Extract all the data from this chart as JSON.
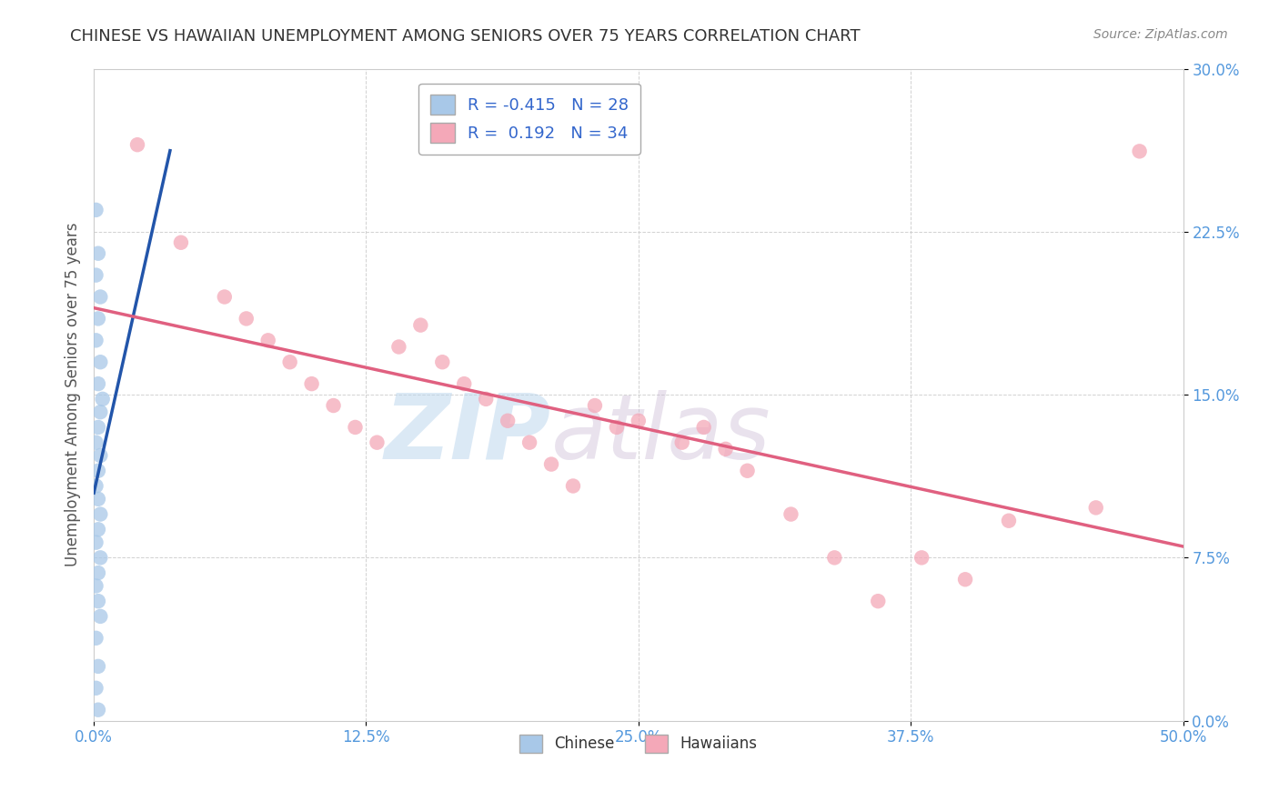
{
  "title": "CHINESE VS HAWAIIAN UNEMPLOYMENT AMONG SENIORS OVER 75 YEARS CORRELATION CHART",
  "source": "Source: ZipAtlas.com",
  "ylabel": "Unemployment Among Seniors over 75 years",
  "xlim": [
    0.0,
    0.5
  ],
  "ylim": [
    0.0,
    0.3
  ],
  "xticks": [
    0.0,
    0.125,
    0.25,
    0.375,
    0.5
  ],
  "xtick_labels": [
    "0.0%",
    "12.5%",
    "25.0%",
    "37.5%",
    "50.0%"
  ],
  "yticks": [
    0.0,
    0.075,
    0.15,
    0.225,
    0.3
  ],
  "ytick_labels": [
    "0.0%",
    "7.5%",
    "15.0%",
    "22.5%",
    "30.0%"
  ],
  "chinese_R": -0.415,
  "chinese_N": 28,
  "hawaiian_R": 0.192,
  "hawaiian_N": 34,
  "chinese_color": "#a8c8e8",
  "hawaiian_color": "#f4a8b8",
  "chinese_line_color": "#2255aa",
  "hawaiian_line_color": "#e06080",
  "bg_color": "#ffffff",
  "grid_color": "#cccccc",
  "watermark_zip": "ZIP",
  "watermark_atlas": "atlas",
  "chinese_x": [
    0.001,
    0.002,
    0.001,
    0.003,
    0.002,
    0.001,
    0.003,
    0.002,
    0.004,
    0.003,
    0.002,
    0.001,
    0.003,
    0.002,
    0.001,
    0.002,
    0.003,
    0.002,
    0.001,
    0.003,
    0.002,
    0.001,
    0.002,
    0.003,
    0.001,
    0.002,
    0.001,
    0.002
  ],
  "chinese_y": [
    0.235,
    0.215,
    0.205,
    0.195,
    0.185,
    0.175,
    0.165,
    0.155,
    0.148,
    0.142,
    0.135,
    0.128,
    0.122,
    0.115,
    0.108,
    0.102,
    0.095,
    0.088,
    0.082,
    0.075,
    0.068,
    0.062,
    0.055,
    0.048,
    0.038,
    0.025,
    0.015,
    0.005
  ],
  "hawaiian_x": [
    0.02,
    0.04,
    0.06,
    0.07,
    0.08,
    0.09,
    0.1,
    0.11,
    0.12,
    0.13,
    0.14,
    0.15,
    0.16,
    0.17,
    0.18,
    0.19,
    0.2,
    0.21,
    0.22,
    0.23,
    0.24,
    0.25,
    0.27,
    0.28,
    0.29,
    0.3,
    0.32,
    0.34,
    0.36,
    0.38,
    0.4,
    0.42,
    0.46,
    0.48
  ],
  "hawaiian_y": [
    0.265,
    0.22,
    0.195,
    0.185,
    0.175,
    0.165,
    0.155,
    0.145,
    0.135,
    0.128,
    0.172,
    0.182,
    0.165,
    0.155,
    0.148,
    0.138,
    0.128,
    0.118,
    0.108,
    0.145,
    0.135,
    0.138,
    0.128,
    0.135,
    0.125,
    0.115,
    0.095,
    0.075,
    0.055,
    0.075,
    0.065,
    0.092,
    0.098,
    0.262
  ]
}
